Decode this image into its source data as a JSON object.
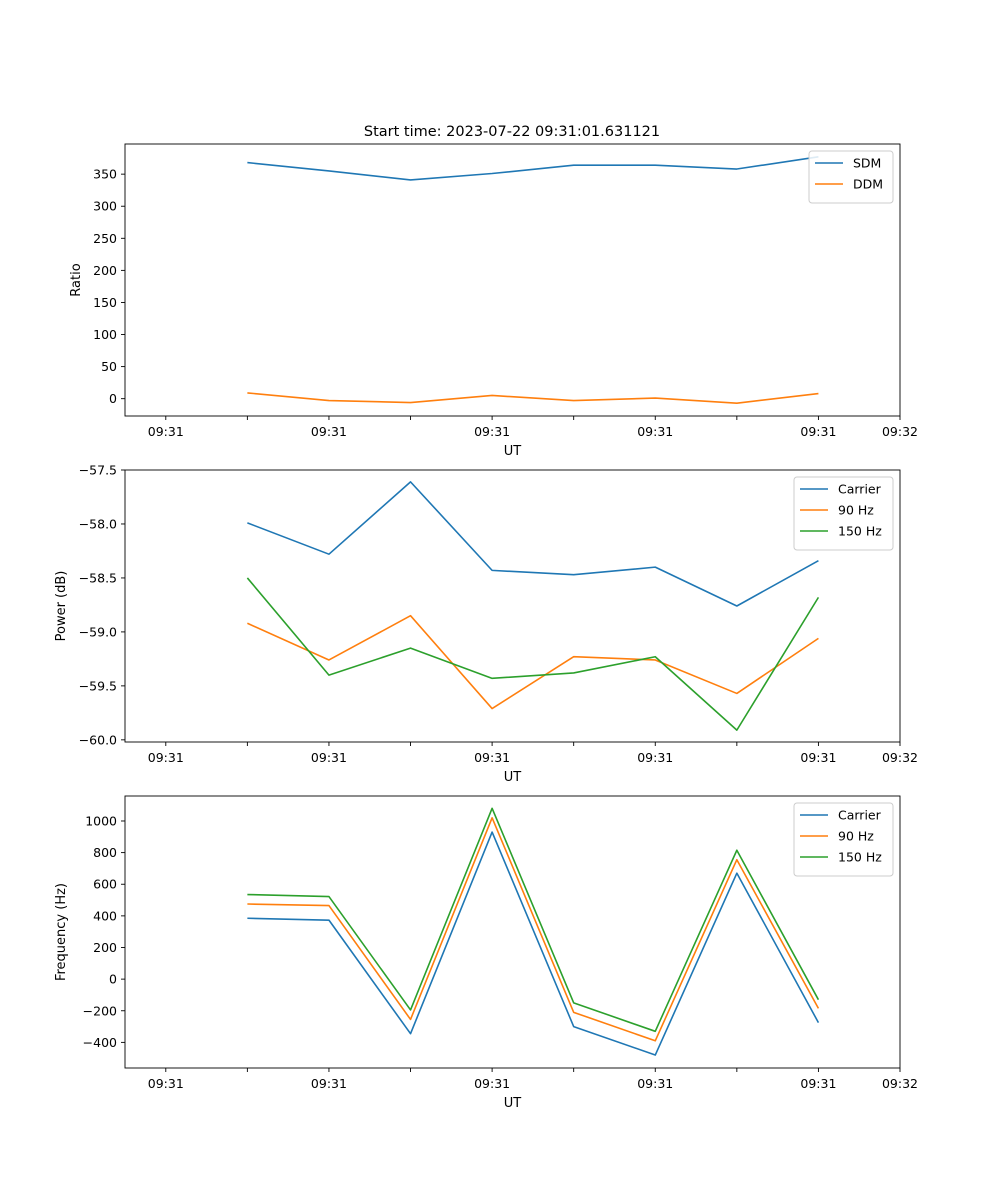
{
  "figure_title": "Start time: 2023-07-22 09:31:01.631121",
  "colors": {
    "blue": "#1f77b4",
    "orange": "#ff7f0e",
    "green": "#2ca02c"
  },
  "chart_data": [
    {
      "type": "line",
      "title": "Start time: 2023-07-22 09:31:01.631121",
      "xlabel": "UT",
      "ylabel": "Ratio",
      "x": [
        0.5,
        1,
        1.5,
        2,
        2.5,
        3,
        3.5,
        4
      ],
      "xlim": [
        -0.25,
        4.5
      ],
      "xticks": [
        0,
        0.5,
        1,
        1.5,
        2,
        2.5,
        3,
        3.5,
        4,
        4.5
      ],
      "xtick_labels": [
        "09:31",
        "",
        "09:31",
        "",
        "09:31",
        "",
        "09:31",
        "",
        "09:31",
        "09:32"
      ],
      "ylim": [
        -27,
        397
      ],
      "yticks": [
        0,
        50,
        100,
        150,
        200,
        250,
        300,
        350
      ],
      "ytick_labels": [
        "0",
        "50",
        "100",
        "150",
        "200",
        "250",
        "300",
        "350"
      ],
      "legend": "top-right",
      "series": [
        {
          "name": "SDM",
          "color": "#1f77b4",
          "values": [
            368,
            355,
            341,
            351,
            364,
            364,
            358,
            377
          ]
        },
        {
          "name": "DDM",
          "color": "#ff7f0e",
          "values": [
            9,
            -3,
            -6,
            5,
            -3,
            1,
            -7,
            8
          ]
        }
      ]
    },
    {
      "type": "line",
      "title": "",
      "xlabel": "UT",
      "ylabel": "Power (dB)",
      "x": [
        0.5,
        1,
        1.5,
        2,
        2.5,
        3,
        3.5,
        4
      ],
      "xlim": [
        -0.25,
        4.5
      ],
      "xticks": [
        0,
        0.5,
        1,
        1.5,
        2,
        2.5,
        3,
        3.5,
        4,
        4.5
      ],
      "xtick_labels": [
        "09:31",
        "",
        "09:31",
        "",
        "09:31",
        "",
        "09:31",
        "",
        "09:31",
        "09:32"
      ],
      "ylim": [
        -60.02,
        -57.5
      ],
      "yticks": [
        -57.5,
        -58.0,
        -58.5,
        -59.0,
        -59.5,
        -60.0
      ],
      "ytick_labels": [
        "−57.5",
        "−58.0",
        "−58.5",
        "−59.0",
        "−59.5",
        "−60.0"
      ],
      "legend": "top-right",
      "series": [
        {
          "name": "Carrier",
          "color": "#1f77b4",
          "values": [
            -57.99,
            -58.28,
            -57.61,
            -58.43,
            -58.47,
            -58.4,
            -58.76,
            -58.34
          ]
        },
        {
          "name": "90 Hz",
          "color": "#ff7f0e",
          "values": [
            -58.92,
            -59.26,
            -58.85,
            -59.71,
            -59.23,
            -59.26,
            -59.57,
            -59.06
          ]
        },
        {
          "name": "150 Hz",
          "color": "#2ca02c",
          "values": [
            -58.5,
            -59.4,
            -59.15,
            -59.43,
            -59.38,
            -59.23,
            -59.91,
            -58.68
          ]
        }
      ]
    },
    {
      "type": "line",
      "title": "",
      "xlabel": "UT",
      "ylabel": "Frequency (Hz)",
      "x": [
        0.5,
        1,
        1.5,
        2,
        2.5,
        3,
        3.5,
        4
      ],
      "xlim": [
        -0.25,
        4.5
      ],
      "xticks": [
        0,
        0.5,
        1,
        1.5,
        2,
        2.5,
        3,
        3.5,
        4,
        4.5
      ],
      "xtick_labels": [
        "09:31",
        "",
        "09:31",
        "",
        "09:31",
        "",
        "09:31",
        "",
        "09:31",
        "09:32"
      ],
      "ylim": [
        -562,
        1158
      ],
      "yticks": [
        -400,
        -200,
        0,
        200,
        400,
        600,
        800,
        1000
      ],
      "ytick_labels": [
        "−400",
        "−200",
        "0",
        "200",
        "400",
        "600",
        "800",
        "1000"
      ],
      "legend": "top-right",
      "series": [
        {
          "name": "Carrier",
          "color": "#1f77b4",
          "values": [
            385,
            373,
            -345,
            930,
            -300,
            -480,
            670,
            -275
          ]
        },
        {
          "name": "90 Hz",
          "color": "#ff7f0e",
          "values": [
            475,
            465,
            -255,
            1020,
            -210,
            -390,
            755,
            -185
          ]
        },
        {
          "name": "150 Hz",
          "color": "#2ca02c",
          "values": [
            535,
            522,
            -195,
            1080,
            -150,
            -330,
            815,
            -130
          ]
        }
      ]
    }
  ]
}
